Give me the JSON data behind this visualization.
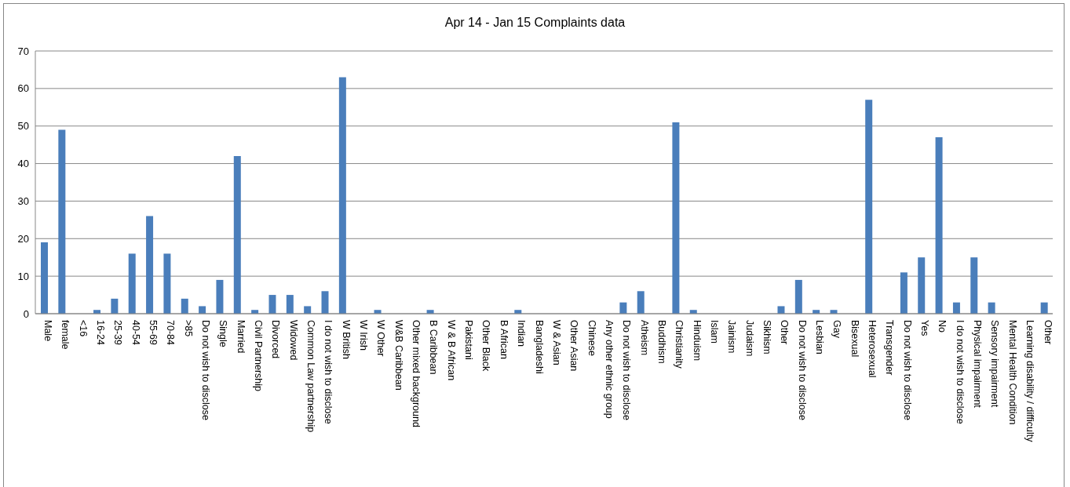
{
  "chart_data": {
    "type": "bar",
    "title": "Apr 14 - Jan 15 Complaints data",
    "categories": [
      "Male",
      "female",
      "<16",
      "16-24",
      "25-39",
      "40-54",
      "55-69",
      "70-84",
      ">85",
      "Do not wish to disclose",
      "Single",
      "Married",
      "Civil Partnership",
      "Divorced",
      "Widowed",
      "Common Law partnership",
      "I do not wish to disclose",
      "W British",
      "W Irish",
      "W Other",
      "W&B Caribbean",
      "Other mixed background",
      "B Caribbean",
      "W & B African",
      "Pakistani",
      "Other Black",
      "B African",
      "Indian",
      "Bangladeshi",
      "W & Asian",
      "Other Asian",
      "Chinese",
      "Any other ethnic group",
      "Do not wish to disclose",
      "Atheism",
      "Buddhism",
      "Christianity",
      "Hinduism",
      "Islam",
      "Jainism",
      "Judaism",
      "Sikhism",
      "Other",
      "Do not wish to disclose",
      "Lesbian",
      "Gay",
      "Bisexual",
      "Heterosexual",
      "Transgender",
      "Do not wish to disclose",
      "Yes",
      "No",
      "I do not wish to disclose",
      "Physical impairment",
      "Sensory impairment",
      "Mental Health Condition",
      "Learning disability / difficulty",
      "Other"
    ],
    "values": [
      19,
      49,
      0,
      1,
      4,
      16,
      26,
      16,
      4,
      2,
      9,
      42,
      1,
      5,
      5,
      2,
      6,
      63,
      0,
      1,
      0,
      0,
      1,
      0,
      0,
      0,
      0,
      1,
      0,
      0,
      0,
      0,
      0,
      3,
      6,
      0,
      51,
      1,
      0,
      0,
      0,
      0,
      2,
      9,
      1,
      1,
      0,
      57,
      0,
      11,
      15,
      47,
      3,
      15,
      3,
      0,
      0,
      3
    ],
    "color": "#4a7ebb",
    "ylim": [
      0,
      70
    ],
    "yticks": [
      0,
      10,
      20,
      30,
      40,
      50,
      60,
      70
    ],
    "grid": "y",
    "legend": false
  }
}
